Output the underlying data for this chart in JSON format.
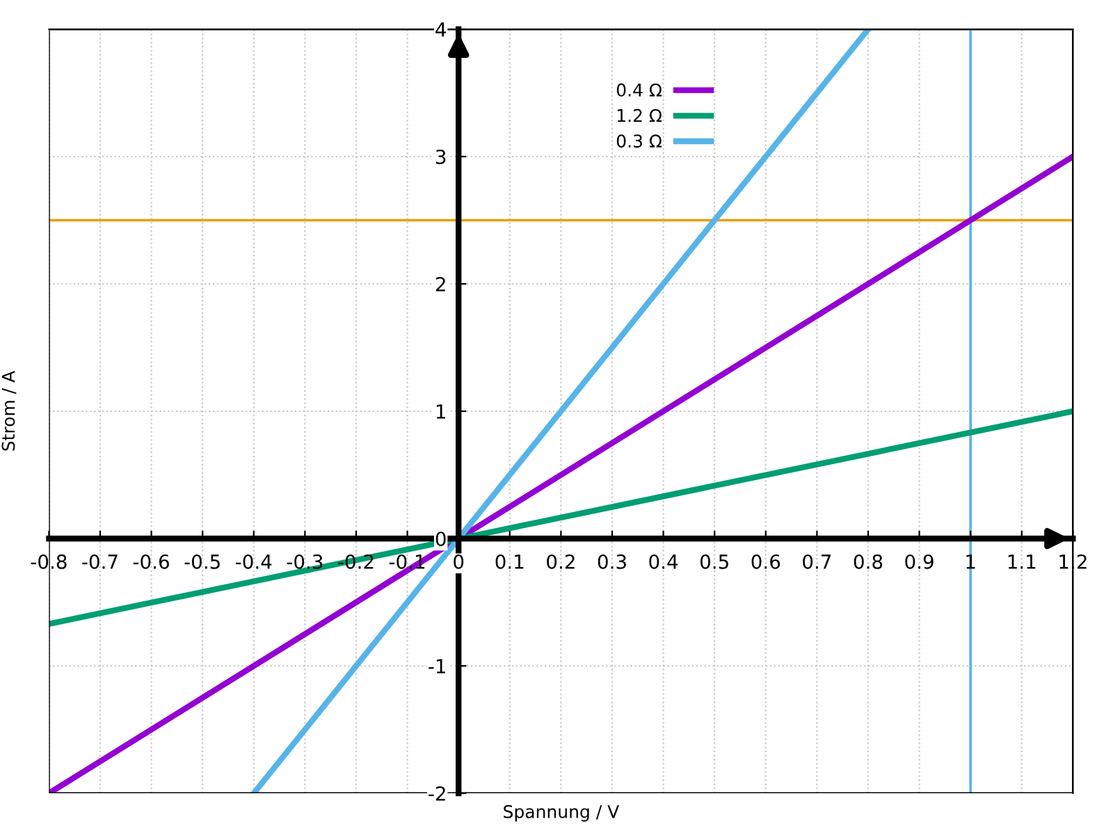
{
  "chart_data": {
    "type": "line",
    "xlabel": "Spannung / V",
    "ylabel": "Strom / A",
    "series": [
      {
        "name": "0.4 Ω",
        "color": "#9400d3",
        "x": [
          -0.8,
          1.2
        ],
        "values": [
          -2,
          3
        ]
      },
      {
        "name": "1.2 Ω",
        "color": "#009e73",
        "x": [
          -0.8,
          1.2
        ],
        "values": [
          -0.67,
          1
        ]
      },
      {
        "name": "0.3 Ω",
        "color": "#56b4e9",
        "x": [
          -0.4,
          0.8
        ],
        "values": [
          -2,
          4
        ]
      }
    ],
    "xlim": [
      -0.8,
      1.2
    ],
    "ylim": [
      -2,
      4
    ],
    "xticks": [
      -0.8,
      -0.7,
      -0.6,
      -0.5,
      -0.4,
      -0.3,
      -0.2,
      -0.1,
      0,
      0.1,
      0.2,
      0.3,
      0.4,
      0.5,
      0.6,
      0.7,
      0.8,
      0.9,
      1,
      1.1,
      1.2
    ],
    "yticks": [
      -2,
      -1,
      0,
      1,
      2,
      3,
      4
    ],
    "ref_lines": [
      {
        "axis": "y",
        "value": 2.5,
        "color": "#e69f00"
      },
      {
        "axis": "x",
        "value": 1,
        "color": "#56b4e9"
      }
    ],
    "grid": true,
    "legend": "top",
    "line_style": "solid",
    "marker": "none"
  }
}
